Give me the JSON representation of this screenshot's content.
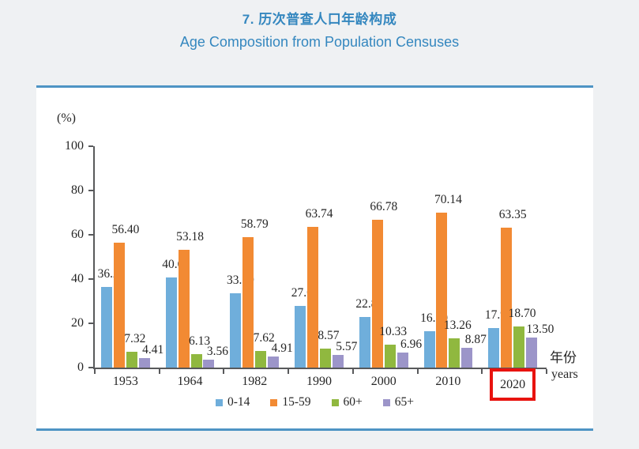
{
  "page": {
    "title_zh": "7. 历次普查人口年龄构成",
    "title_en": "Age Composition from Population Censuses"
  },
  "chart_data": {
    "type": "bar",
    "title_zh": "7. 历次普查人口年龄构成",
    "title_en": "Age Composition from Population Censuses",
    "unit_label": "(%)",
    "xaxis_label_zh": "年份",
    "xaxis_label_en": "years",
    "categories": [
      "1953",
      "1964",
      "1982",
      "1990",
      "2000",
      "2010",
      "2020"
    ],
    "highlighted_category": "2020",
    "ylim": [
      0,
      100
    ],
    "yticks": [
      0,
      20,
      40,
      60,
      80,
      100
    ],
    "grid": false,
    "legend_position": "bottom",
    "value_labels": true,
    "value_decimals": 2,
    "series": [
      {
        "name": "0-14",
        "color": "#6FAEDB",
        "values": [
          36.28,
          40.69,
          33.59,
          27.69,
          22.89,
          16.6,
          17.95
        ]
      },
      {
        "name": "15-59",
        "color": "#F28A33",
        "values": [
          56.4,
          53.18,
          58.79,
          63.74,
          66.78,
          70.14,
          63.35
        ]
      },
      {
        "name": "60+",
        "color": "#90B83F",
        "values": [
          7.32,
          6.13,
          7.62,
          8.57,
          10.33,
          13.26,
          18.7
        ]
      },
      {
        "name": "65+",
        "color": "#9C95C9",
        "values": [
          4.41,
          3.56,
          4.91,
          5.57,
          6.96,
          8.87,
          13.5
        ]
      }
    ]
  },
  "colors": {
    "page_bg": "#EFF1F3",
    "title": "#3487BF",
    "card_bg": "#FFFFFF",
    "card_border": "#4E94C4",
    "axis": "#58595B",
    "text": "#262626",
    "highlight_box": "#E8130F"
  }
}
